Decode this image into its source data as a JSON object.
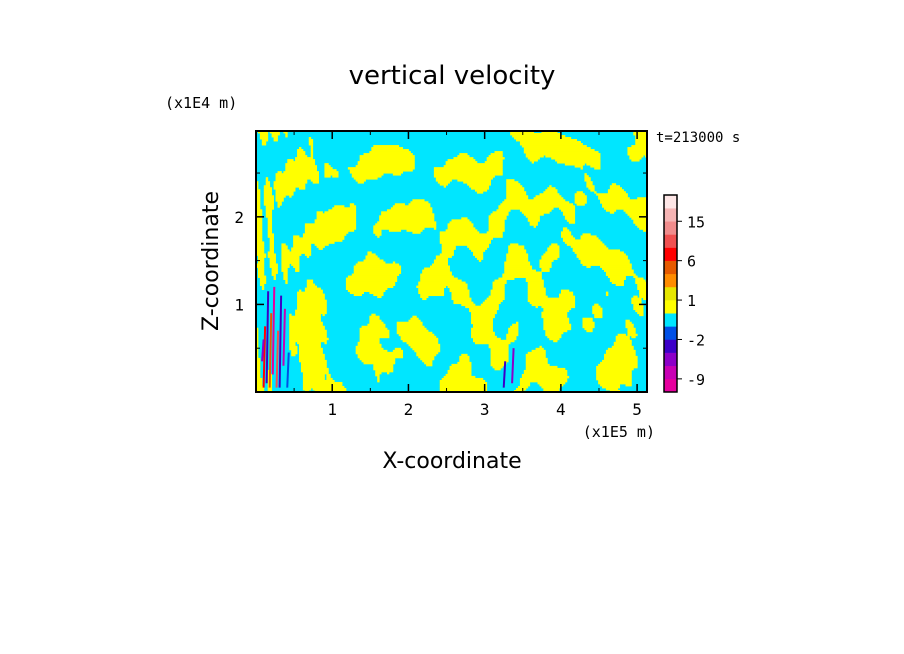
{
  "chart_data": {
    "type": "heatmap",
    "title": "vertical velocity",
    "xlabel": "X-coordinate",
    "ylabel": "Z-coordinate",
    "x_unit": "(x1E5 m)",
    "y_unit": "(x1E4 m)",
    "time_label": "t=213000 s",
    "xlim": [
      0,
      5.13
    ],
    "ylim": [
      0,
      2.98
    ],
    "x_ticks": [
      1,
      2,
      3,
      4,
      5
    ],
    "y_ticks": [
      1,
      2
    ],
    "colorbar": {
      "levels": [
        -12,
        -9,
        -6,
        -4,
        -2,
        -1,
        0,
        1,
        2,
        4,
        6,
        9,
        12,
        15,
        18,
        21
      ],
      "colors": [
        "#e6009e",
        "#c800b4",
        "#8c00c8",
        "#3c00c8",
        "#0050e6",
        "#00e6ff",
        "#ffff00",
        "#e6e600",
        "#ff8c00",
        "#e65a00",
        "#ff0000",
        "#f05050",
        "#f08c8c",
        "#f5b4b4",
        "#fde6e6"
      ],
      "tick_labels": [
        "15",
        "6",
        "1",
        "-2",
        "-9"
      ],
      "tick_values": [
        15,
        6,
        1,
        -2,
        -9
      ]
    },
    "palette": {
      "cyan": "#00e6ff",
      "yellow": "#ffff00"
    }
  }
}
